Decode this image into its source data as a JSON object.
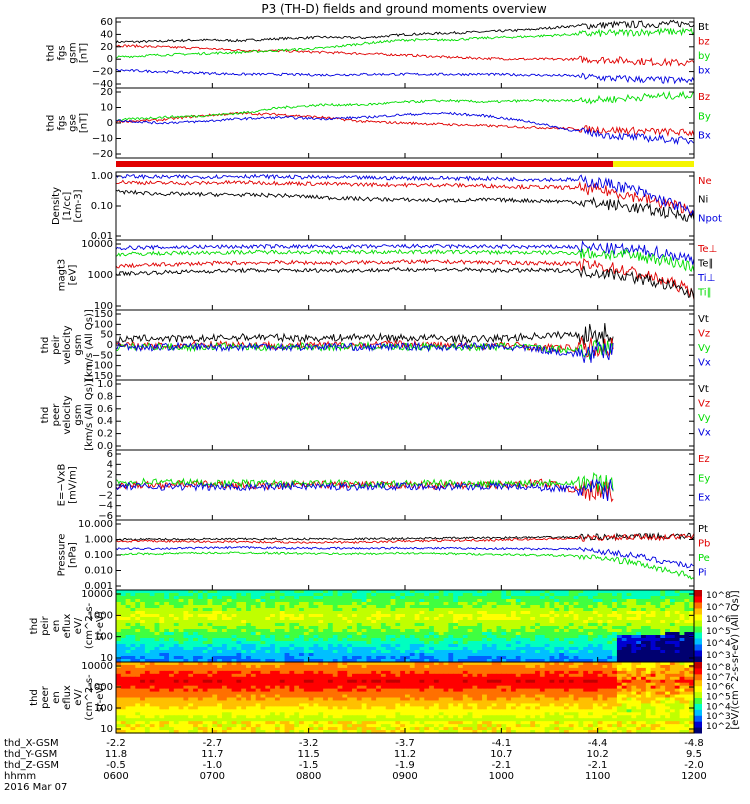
{
  "title": "P3 (TH-D) fields and ground moments overview",
  "colors": {
    "black": "#000000",
    "red": "#e00000",
    "green": "#00dd00",
    "blue": "#0000e0",
    "yellow": "#f5f500"
  },
  "chart_data": [
    {
      "type": "line",
      "id": "fgs_gsm",
      "ylabel": [
        "thd",
        "fgs",
        "gsm",
        "[nT]"
      ],
      "yticks": [
        "60",
        "40",
        "20",
        "0",
        "−20",
        "−40"
      ],
      "ylim": [
        -40,
        62
      ],
      "series": [
        {
          "name": "Bt",
          "color": "#000000",
          "base": [
            27,
            28,
            30,
            29,
            32,
            34,
            33,
            38,
            40,
            42,
            45,
            50,
            52,
            53,
            54
          ]
        },
        {
          "name": "bz",
          "color": "#e00000",
          "base": [
            22,
            20,
            18,
            15,
            14,
            12,
            10,
            8,
            5,
            3,
            2,
            2,
            1,
            -2,
            -4
          ]
        },
        {
          "name": "by",
          "color": "#00dd00",
          "base": [
            5,
            8,
            10,
            12,
            15,
            18,
            25,
            30,
            30,
            33,
            35,
            38,
            40,
            42,
            42
          ]
        },
        {
          "name": "bx",
          "color": "#0000e0",
          "base": [
            -14,
            -16,
            -18,
            -20,
            -20,
            -21,
            -20,
            -20,
            -20,
            -20,
            -21,
            -22,
            -26,
            -28,
            -30
          ]
        }
      ]
    },
    {
      "type": "line",
      "id": "fgs_gse",
      "ylabel": [
        "thd",
        "fgs",
        "gse",
        "[nT]"
      ],
      "yticks": [
        "20",
        "10",
        "0",
        "−10",
        "−20"
      ],
      "ylim": [
        -28,
        22
      ],
      "series": [
        {
          "name": "Bz",
          "color": "#e00000",
          "base": [
            -2,
            -1,
            2,
            4,
            3,
            1,
            -2,
            -3,
            -4,
            -5,
            -6,
            -7,
            -8,
            -9,
            -10
          ]
        },
        {
          "name": "By",
          "color": "#00dd00",
          "base": [
            -1,
            1,
            2,
            4,
            8,
            10,
            10,
            12,
            13,
            12,
            13,
            13,
            14,
            16,
            17
          ]
        },
        {
          "name": "Bx",
          "color": "#0000e0",
          "base": [
            -1,
            -3,
            -2,
            0,
            1,
            0,
            1,
            3,
            4,
            2,
            -2,
            -8,
            -12,
            -14,
            -16
          ]
        }
      ]
    },
    {
      "type": "line",
      "id": "density",
      "ylabel": [
        "Density",
        "[1/cc]",
        "[cm-3]"
      ],
      "yticks": [
        "1.00",
        "0.10",
        "0.01"
      ],
      "ylim": [
        0.01,
        1.2
      ],
      "scale": "log",
      "series": [
        {
          "name": "Ne",
          "color": "#e00000",
          "base": [
            0.6,
            0.55,
            0.55,
            0.58,
            0.55,
            0.52,
            0.5,
            0.48,
            0.48,
            0.45,
            0.42,
            0.4,
            0.3,
            0.15,
            0.08
          ]
        },
        {
          "name": "Ni",
          "color": "#000000",
          "base": [
            0.3,
            0.26,
            0.25,
            0.24,
            0.23,
            0.2,
            0.18,
            0.17,
            0.16,
            0.17,
            0.16,
            0.15,
            0.12,
            0.08,
            0.05
          ]
        },
        {
          "name": "Npot",
          "color": "#0000e0",
          "base": [
            0.9,
            0.85,
            0.85,
            0.9,
            0.85,
            0.82,
            0.8,
            0.78,
            0.78,
            0.75,
            0.72,
            0.7,
            0.5,
            0.2,
            0.05
          ]
        }
      ]
    },
    {
      "type": "line",
      "id": "temperature",
      "ylabel": [
        "magt3",
        "[eV]"
      ],
      "yticks": [
        "10000",
        "1000",
        "100"
      ],
      "ylim": [
        100,
        12000
      ],
      "scale": "log",
      "series": [
        {
          "name": "Te⊥",
          "color": "#e00000",
          "base": [
            2000,
            2200,
            2400,
            2500,
            2600,
            2500,
            2600,
            2700,
            2700,
            2600,
            2500,
            2400,
            1800,
            900,
            300
          ]
        },
        {
          "name": "Te∥",
          "color": "#000000",
          "base": [
            1200,
            1300,
            1400,
            1500,
            1500,
            1500,
            1500,
            1600,
            1600,
            1500,
            1500,
            1500,
            1200,
            700,
            250
          ]
        },
        {
          "name": "Ti⊥",
          "color": "#0000e0",
          "base": [
            7000,
            7200,
            7500,
            7600,
            7800,
            7500,
            7600,
            7800,
            7800,
            7600,
            7500,
            7500,
            6500,
            5500,
            3000
          ]
        },
        {
          "name": "Ti∥",
          "color": "#00dd00",
          "base": [
            4500,
            4800,
            5000,
            5200,
            5300,
            5200,
            5300,
            5400,
            5300,
            5200,
            5100,
            5000,
            4500,
            3500,
            1800
          ]
        }
      ]
    },
    {
      "type": "line",
      "id": "peir_velocity",
      "ylabel": [
        "thd",
        "peir",
        "velocity",
        "gsm",
        "[km/s (All Qs)]"
      ],
      "yticks": [
        "150",
        "100",
        "50",
        "0",
        "−50",
        "−100",
        "−150"
      ],
      "ylim": [
        -150,
        150
      ],
      "xend": 0.86,
      "series": [
        {
          "name": "Vt",
          "color": "#000000",
          "base": [
            20,
            30,
            25,
            30,
            35,
            30,
            30,
            35,
            30,
            30,
            25,
            30,
            40,
            45,
            50
          ]
        },
        {
          "name": "Vz",
          "color": "#e00000",
          "base": [
            0,
            -5,
            0,
            5,
            0,
            -5,
            0,
            0,
            5,
            0,
            -5,
            0,
            -10,
            -15,
            -10
          ]
        },
        {
          "name": "Vy",
          "color": "#00dd00",
          "base": [
            -10,
            -5,
            -10,
            -5,
            -10,
            -5,
            -10,
            -5,
            -10,
            -5,
            -10,
            -5,
            -15,
            -20,
            -15
          ]
        },
        {
          "name": "Vx",
          "color": "#0000e0",
          "base": [
            -5,
            -10,
            -5,
            -10,
            -5,
            -10,
            -5,
            -10,
            -5,
            -10,
            -5,
            -10,
            -20,
            -40,
            -30
          ]
        }
      ]
    },
    {
      "type": "line",
      "id": "peer_velocity",
      "ylabel": [
        "thd",
        "peer",
        "velocity",
        "gsm",
        "[km/s (All Qs)]"
      ],
      "yticks": [
        "1.0",
        "0.8",
        "0.6",
        "0.4",
        "0.2",
        "0.0"
      ],
      "ylim": [
        0,
        1
      ],
      "series": [
        {
          "name": "Vt",
          "color": "#000000",
          "base": []
        },
        {
          "name": "Vz",
          "color": "#e00000",
          "base": []
        },
        {
          "name": "Vy",
          "color": "#00dd00",
          "base": []
        },
        {
          "name": "Vx",
          "color": "#0000e0",
          "base": []
        }
      ]
    },
    {
      "type": "line",
      "id": "efield",
      "ylabel": [
        "E=−VxB",
        "[mV/m]"
      ],
      "yticks": [
        "6",
        "4",
        "2",
        "0",
        "−2",
        "−4",
        "−6"
      ],
      "ylim": [
        -6.5,
        6.5
      ],
      "xend": 0.86,
      "series": [
        {
          "name": "Ez",
          "color": "#e00000",
          "base": [
            0,
            0,
            0.2,
            0,
            -0.2,
            0,
            0.1,
            0,
            0,
            -0.1,
            0,
            0,
            0.5,
            -1,
            -1.5
          ]
        },
        {
          "name": "Ey",
          "color": "#00dd00",
          "base": [
            0.5,
            0.6,
            0.5,
            0.3,
            0.3,
            0.2,
            0.3,
            0.2,
            0.2,
            0.3,
            0.2,
            0.2,
            0.5,
            0.5,
            0.3
          ]
        },
        {
          "name": "Ex",
          "color": "#0000e0",
          "base": [
            -0.2,
            -0.3,
            -0.3,
            -0.4,
            -0.3,
            -0.2,
            -0.3,
            -0.3,
            -0.2,
            -0.3,
            -0.3,
            -0.2,
            -0.5,
            -0.8,
            -1
          ]
        }
      ]
    },
    {
      "type": "line",
      "id": "pressure",
      "ylabel": [
        "Pressure",
        "[nPa]"
      ],
      "yticks": [
        "10.000",
        "1.000",
        "0.100",
        "0.010",
        "0.001"
      ],
      "ylim": [
        0.001,
        12
      ],
      "scale": "log",
      "series": [
        {
          "name": "Pt",
          "color": "#000000",
          "base": [
            0.9,
            0.9,
            0.92,
            0.92,
            0.95,
            0.95,
            0.95,
            1,
            1.05,
            1.1,
            1.15,
            1.2,
            1.25,
            1.3,
            1.35
          ]
        },
        {
          "name": "Pb",
          "color": "#e00000",
          "base": [
            0.7,
            0.7,
            0.65,
            0.65,
            0.6,
            0.6,
            0.6,
            0.7,
            0.75,
            0.8,
            0.9,
            1,
            1.1,
            1.2,
            1.3
          ]
        },
        {
          "name": "Pe",
          "color": "#00dd00",
          "base": [
            0.12,
            0.13,
            0.14,
            0.15,
            0.14,
            0.13,
            0.13,
            0.14,
            0.13,
            0.12,
            0.11,
            0.1,
            0.06,
            0.02,
            0.004
          ]
        },
        {
          "name": "Pi",
          "color": "#0000e0",
          "base": [
            0.25,
            0.26,
            0.28,
            0.3,
            0.28,
            0.27,
            0.27,
            0.28,
            0.27,
            0.26,
            0.25,
            0.25,
            0.15,
            0.06,
            0.02
          ]
        }
      ]
    },
    {
      "type": "heatmap",
      "id": "peir_en_eflux",
      "ylabel": [
        "thd",
        "peir",
        "en",
        "eflux",
        "eV/",
        "(cm^2-s-",
        "sr-eV)"
      ],
      "yticks": [
        "10000",
        "1000",
        "100",
        "10"
      ],
      "ylim": [
        5,
        20000
      ],
      "scale": "log",
      "zlabel": "[eV/(cm^2-s-sr-eV) (All Qs)]",
      "zticks": [
        "10^8",
        "10^7",
        "10^6",
        "10^5",
        "10^4",
        "10^3"
      ]
    },
    {
      "type": "heatmap",
      "id": "peer_en_eflux",
      "ylabel": [
        "thd",
        "peer",
        "en",
        "eflux",
        "eV/",
        "(cm^2-s-",
        "sr-eV)"
      ],
      "yticks": [
        "10000",
        "1000",
        "100",
        "10"
      ],
      "ylim": [
        5,
        20000
      ],
      "scale": "log",
      "zticks": [
        "10^8",
        "10^7",
        "10^6",
        "10^5",
        "10^4",
        "10^3",
        "10^2"
      ]
    }
  ],
  "ephemeris": {
    "row_labels": [
      "thd_X-GSM",
      "thd_Y-GSM",
      "thd_Z-GSM",
      "hhmm",
      "2016 Mar 07"
    ],
    "columns": [
      [
        "-2.2",
        "11.8",
        "-0.5",
        "0600"
      ],
      [
        "-2.7",
        "11.7",
        "-1.0",
        "0700"
      ],
      [
        "-3.2",
        "11.5",
        "-1.5",
        "0800"
      ],
      [
        "-3.7",
        "11.2",
        "-1.9",
        "0900"
      ],
      [
        "-4.1",
        "10.7",
        "-2.1",
        "1000"
      ],
      [
        "-4.4",
        "10.2",
        "-2.1",
        "1100"
      ],
      [
        "-4.8",
        "9.5",
        "-2.0",
        "1200"
      ]
    ]
  },
  "colorbar_label": "[eV/(cm^2-s-sr-eV) (All Qs)]"
}
